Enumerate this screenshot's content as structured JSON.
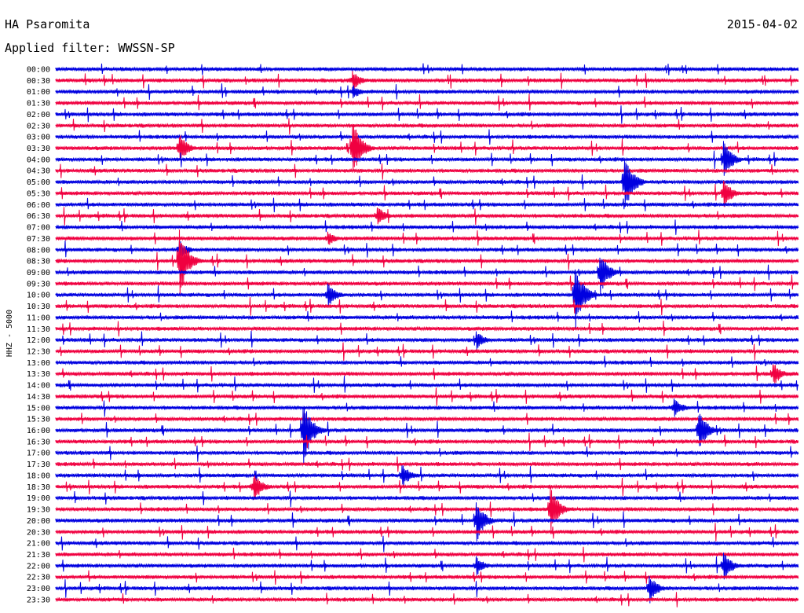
{
  "chart_data": {
    "type": "line",
    "title": "HA Psaromita",
    "subtitle": "Applied filter: WWSSN-SP",
    "date": "2015-04-02",
    "ylabel": "HHZ - 5000",
    "colors": [
      "#0000e0",
      "#f00040"
    ],
    "tick_labels": [
      "00:00",
      "00:30",
      "01:00",
      "01:30",
      "02:00",
      "02:30",
      "03:00",
      "03:30",
      "04:00",
      "04:30",
      "05:00",
      "05:30",
      "06:00",
      "06:30",
      "07:00",
      "07:30",
      "08:00",
      "08:30",
      "09:00",
      "09:30",
      "10:00",
      "10:30",
      "11:00",
      "11:30",
      "12:00",
      "12:30",
      "13:00",
      "13:30",
      "14:00",
      "14:30",
      "15:00",
      "15:30",
      "16:00",
      "16:30",
      "17:00",
      "17:30",
      "18:00",
      "18:30",
      "19:00",
      "19:30",
      "20:00",
      "20:30",
      "21:00",
      "21:30",
      "22:00",
      "22:30",
      "23:00",
      "23:30"
    ],
    "minutes_per_trace": 30,
    "events": [
      {
        "trace": "00:30",
        "minute": 12,
        "amplitude": 40
      },
      {
        "trace": "01:00",
        "minute": 12,
        "amplitude": 30
      },
      {
        "trace": "03:30",
        "minute": 12,
        "amplitude": 120
      },
      {
        "trace": "03:30",
        "minute": 5,
        "amplitude": 60
      },
      {
        "trace": "04:00",
        "minute": 27,
        "amplitude": 80
      },
      {
        "trace": "05:00",
        "minute": 23,
        "amplitude": 120
      },
      {
        "trace": "05:30",
        "minute": 27,
        "amplitude": 60
      },
      {
        "trace": "06:30",
        "minute": 13,
        "amplitude": 40
      },
      {
        "trace": "07:30",
        "minute": 11,
        "amplitude": 30
      },
      {
        "trace": "08:00",
        "minute": 5,
        "amplitude": 40
      },
      {
        "trace": "08:30",
        "minute": 5,
        "amplitude": 140
      },
      {
        "trace": "09:00",
        "minute": 22,
        "amplitude": 90
      },
      {
        "trace": "10:00",
        "minute": 21,
        "amplitude": 140
      },
      {
        "trace": "10:00",
        "minute": 11,
        "amplitude": 50
      },
      {
        "trace": "12:00",
        "minute": 17,
        "amplitude": 40
      },
      {
        "trace": "13:30",
        "minute": 29,
        "amplitude": 50
      },
      {
        "trace": "15:00",
        "minute": 25,
        "amplitude": 40
      },
      {
        "trace": "16:00",
        "minute": 10,
        "amplitude": 140
      },
      {
        "trace": "16:00",
        "minute": 26,
        "amplitude": 90
      },
      {
        "trace": "18:00",
        "minute": 14,
        "amplitude": 50
      },
      {
        "trace": "18:30",
        "minute": 8,
        "amplitude": 60
      },
      {
        "trace": "19:30",
        "minute": 20,
        "amplitude": 100
      },
      {
        "trace": "20:00",
        "minute": 17,
        "amplitude": 90
      },
      {
        "trace": "22:00",
        "minute": 17,
        "amplitude": 40
      },
      {
        "trace": "22:00",
        "minute": 27,
        "amplitude": 60
      },
      {
        "trace": "23:00",
        "minute": 24,
        "amplitude": 60
      }
    ]
  }
}
